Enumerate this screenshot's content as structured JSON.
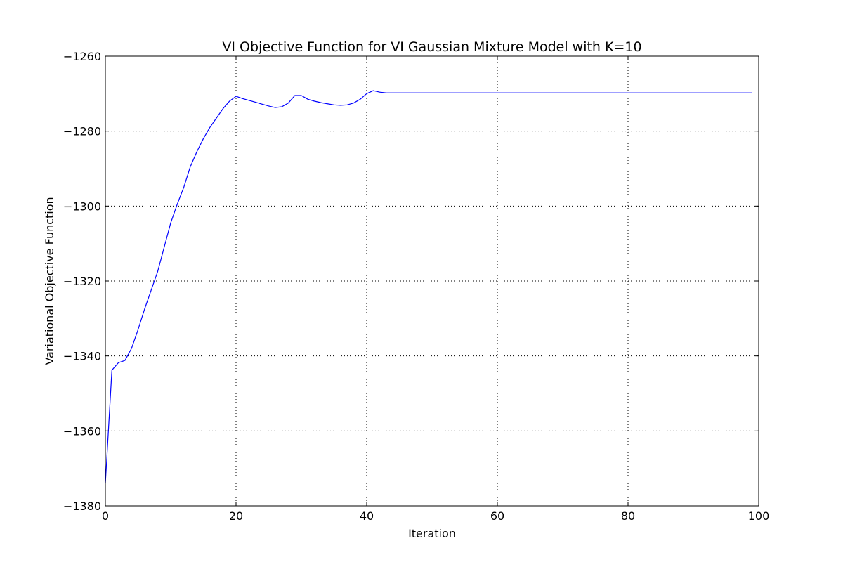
{
  "chart_data": {
    "type": "line",
    "title": "VI Objective Function for VI Gaussian Mixture Model with K=10",
    "xlabel": "Iteration",
    "ylabel": "Variational Objective Function",
    "xlim": [
      0,
      100
    ],
    "ylim": [
      -1380,
      -1260
    ],
    "xticks": [
      0,
      20,
      40,
      60,
      80,
      100
    ],
    "xtick_labels": [
      "0",
      "20",
      "40",
      "60",
      "80",
      "100"
    ],
    "yticks": [
      -1380,
      -1360,
      -1340,
      -1320,
      -1300,
      -1280,
      -1260
    ],
    "ytick_labels": [
      "−1380",
      "−1360",
      "−1340",
      "−1320",
      "−1300",
      "−1280",
      "−1260"
    ],
    "grid": true,
    "legend": "none",
    "series": [
      {
        "color": "#0000ff",
        "x": [
          0,
          1,
          2,
          3,
          4,
          5,
          6,
          7,
          8,
          9,
          10,
          11,
          12,
          13,
          14,
          15,
          16,
          17,
          18,
          19,
          20,
          21,
          22,
          23,
          24,
          25,
          26,
          27,
          28,
          29,
          30,
          31,
          32,
          33,
          34,
          35,
          36,
          37,
          38,
          39,
          40,
          41,
          42,
          43,
          44,
          45,
          46,
          47,
          48,
          49,
          50,
          51,
          52,
          53,
          54,
          55,
          56,
          57,
          58,
          59,
          60,
          61,
          62,
          63,
          64,
          65,
          66,
          67,
          68,
          69,
          70,
          71,
          72,
          73,
          74,
          75,
          76,
          77,
          78,
          79,
          80,
          81,
          82,
          83,
          84,
          85,
          86,
          87,
          88,
          89,
          90,
          91,
          92,
          93,
          94,
          95,
          96,
          97,
          98,
          99
        ],
        "y": [
          -1374,
          -1343.8,
          -1341.8,
          -1341.2,
          -1338.0,
          -1333.0,
          -1327.5,
          -1322.5,
          -1317.5,
          -1311.0,
          -1304.5,
          -1299.5,
          -1295.0,
          -1289.5,
          -1285.5,
          -1282.0,
          -1279.0,
          -1276.5,
          -1274.0,
          -1272.0,
          -1270.7,
          -1271.3,
          -1271.8,
          -1272.3,
          -1272.8,
          -1273.3,
          -1273.7,
          -1273.5,
          -1272.5,
          -1270.5,
          -1270.5,
          -1271.5,
          -1272.0,
          -1272.4,
          -1272.7,
          -1273.0,
          -1273.1,
          -1273.0,
          -1272.5,
          -1271.5,
          -1270.0,
          -1269.2,
          -1269.6,
          -1269.8,
          -1269.8,
          -1269.8,
          -1269.8,
          -1269.8,
          -1269.8,
          -1269.8,
          -1269.8,
          -1269.8,
          -1269.8,
          -1269.8,
          -1269.8,
          -1269.8,
          -1269.8,
          -1269.8,
          -1269.8,
          -1269.8,
          -1269.8,
          -1269.8,
          -1269.8,
          -1269.8,
          -1269.8,
          -1269.8,
          -1269.8,
          -1269.8,
          -1269.8,
          -1269.8,
          -1269.8,
          -1269.8,
          -1269.8,
          -1269.8,
          -1269.8,
          -1269.8,
          -1269.8,
          -1269.8,
          -1269.8,
          -1269.8,
          -1269.8,
          -1269.8,
          -1269.8,
          -1269.8,
          -1269.8,
          -1269.8,
          -1269.8,
          -1269.8,
          -1269.8,
          -1269.8,
          -1269.8,
          -1269.8,
          -1269.8,
          -1269.8,
          -1269.8,
          -1269.8,
          -1269.8,
          -1269.8,
          -1269.8,
          -1269.8
        ]
      }
    ]
  }
}
